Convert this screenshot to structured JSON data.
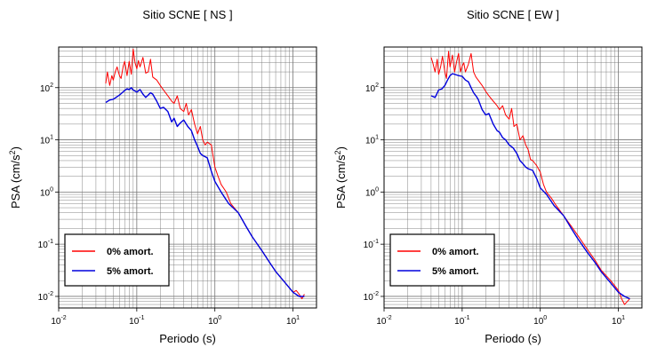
{
  "chart_data": [
    {
      "type": "line",
      "title": "Sitio SCNE [ NS ]",
      "xlabel": "Periodo (s)",
      "ylabel_main": "PSA (cm/s",
      "ylabel_sup": "2",
      "ylabel_tail": ")",
      "xscale": "log",
      "yscale": "log",
      "xlim": [
        0.01,
        20
      ],
      "ylim": [
        0.006,
        600
      ],
      "grid": true,
      "legend_position": "bottom-left",
      "xtick_labels": [
        {
          "base": "10",
          "exp": "-2"
        },
        {
          "base": "10",
          "exp": "-1"
        },
        {
          "base": "10",
          "exp": "0"
        },
        {
          "base": "10",
          "exp": "1"
        }
      ],
      "ytick_labels": [
        {
          "base": "10",
          "exp": "-2"
        },
        {
          "base": "10",
          "exp": "-1"
        },
        {
          "base": "10",
          "exp": "0"
        },
        {
          "base": "10",
          "exp": "1"
        },
        {
          "base": "10",
          "exp": "2"
        }
      ],
      "series": [
        {
          "name": "0% amort.",
          "color": "#ff0000",
          "x": [
            0.04,
            0.042,
            0.045,
            0.048,
            0.05,
            0.053,
            0.056,
            0.06,
            0.063,
            0.067,
            0.07,
            0.075,
            0.08,
            0.085,
            0.09,
            0.095,
            0.1,
            0.105,
            0.11,
            0.12,
            0.13,
            0.14,
            0.15,
            0.16,
            0.18,
            0.2,
            0.22,
            0.25,
            0.28,
            0.3,
            0.33,
            0.36,
            0.4,
            0.43,
            0.46,
            0.5,
            0.55,
            0.6,
            0.65,
            0.7,
            0.75,
            0.8,
            0.9,
            1.0,
            1.1,
            1.2,
            1.4,
            1.6,
            2.0,
            2.5,
            3.0,
            4.0,
            5.0,
            6.0,
            8.0,
            10.0,
            11.0,
            12.0,
            13.0,
            14.0
          ],
          "y": [
            120,
            200,
            110,
            170,
            140,
            200,
            250,
            170,
            150,
            260,
            320,
            170,
            320,
            180,
            550,
            300,
            230,
            330,
            250,
            380,
            190,
            200,
            350,
            160,
            140,
            110,
            90,
            70,
            55,
            50,
            70,
            40,
            35,
            50,
            30,
            38,
            20,
            13,
            18,
            10,
            8,
            9,
            8,
            3.0,
            2.0,
            1.4,
            1.0,
            0.6,
            0.4,
            0.22,
            0.14,
            0.075,
            0.045,
            0.03,
            0.018,
            0.012,
            0.013,
            0.011,
            0.009,
            0.011
          ]
        },
        {
          "name": "5% amort.",
          "color": "#0000dd",
          "x": [
            0.04,
            0.045,
            0.05,
            0.055,
            0.06,
            0.065,
            0.07,
            0.075,
            0.08,
            0.085,
            0.09,
            0.1,
            0.11,
            0.12,
            0.13,
            0.14,
            0.15,
            0.16,
            0.18,
            0.2,
            0.22,
            0.25,
            0.28,
            0.3,
            0.33,
            0.36,
            0.4,
            0.45,
            0.5,
            0.55,
            0.6,
            0.65,
            0.7,
            0.8,
            0.9,
            1.0,
            1.2,
            1.5,
            2.0,
            2.5,
            3.0,
            4.0,
            5.0,
            6.0,
            8.0,
            10.0,
            12.0,
            14.0
          ],
          "y": [
            52,
            58,
            60,
            66,
            72,
            80,
            88,
            95,
            92,
            100,
            90,
            82,
            92,
            75,
            65,
            72,
            80,
            75,
            55,
            40,
            42,
            35,
            22,
            26,
            18,
            21,
            24,
            18,
            15,
            10,
            7.5,
            5.5,
            5,
            4.5,
            2.5,
            1.6,
            1.0,
            0.6,
            0.4,
            0.22,
            0.14,
            0.075,
            0.045,
            0.03,
            0.018,
            0.012,
            0.01,
            0.01
          ]
        }
      ]
    },
    {
      "type": "line",
      "title": "Sitio SCNE [ EW ]",
      "xlabel": "Periodo (s)",
      "ylabel_main": "PSA (cm/s",
      "ylabel_sup": "2",
      "ylabel_tail": ")",
      "xscale": "log",
      "yscale": "log",
      "xlim": [
        0.01,
        20
      ],
      "ylim": [
        0.006,
        600
      ],
      "grid": true,
      "legend_position": "bottom-left",
      "xtick_labels": [
        {
          "base": "10",
          "exp": "-2"
        },
        {
          "base": "10",
          "exp": "-1"
        },
        {
          "base": "10",
          "exp": "0"
        },
        {
          "base": "10",
          "exp": "1"
        }
      ],
      "ytick_labels": [
        {
          "base": "10",
          "exp": "-2"
        },
        {
          "base": "10",
          "exp": "-1"
        },
        {
          "base": "10",
          "exp": "0"
        },
        {
          "base": "10",
          "exp": "1"
        },
        {
          "base": "10",
          "exp": "2"
        }
      ],
      "series": [
        {
          "name": "0% amort.",
          "color": "#ff0000",
          "x": [
            0.04,
            0.042,
            0.045,
            0.048,
            0.05,
            0.053,
            0.056,
            0.06,
            0.063,
            0.067,
            0.07,
            0.075,
            0.08,
            0.085,
            0.09,
            0.095,
            0.1,
            0.105,
            0.11,
            0.12,
            0.13,
            0.14,
            0.15,
            0.16,
            0.18,
            0.2,
            0.22,
            0.25,
            0.28,
            0.3,
            0.33,
            0.36,
            0.4,
            0.43,
            0.46,
            0.5,
            0.55,
            0.6,
            0.65,
            0.7,
            0.75,
            0.8,
            0.9,
            1.0,
            1.1,
            1.2,
            1.4,
            1.6,
            2.0,
            2.5,
            3.0,
            4.0,
            5.0,
            6.0,
            8.0,
            10.0,
            11.0,
            12.0,
            13.0,
            14.0
          ],
          "y": [
            380,
            300,
            200,
            350,
            180,
            250,
            400,
            200,
            150,
            500,
            250,
            420,
            200,
            320,
            450,
            200,
            260,
            300,
            200,
            280,
            450,
            200,
            160,
            140,
            110,
            85,
            70,
            55,
            45,
            38,
            45,
            30,
            25,
            40,
            18,
            20,
            10,
            12,
            8,
            6.5,
            4.2,
            4,
            3.2,
            2.4,
            1.4,
            1.0,
            0.75,
            0.55,
            0.35,
            0.22,
            0.15,
            0.08,
            0.05,
            0.032,
            0.02,
            0.013,
            0.009,
            0.007,
            0.008,
            0.009
          ]
        },
        {
          "name": "5% amort.",
          "color": "#0000dd",
          "x": [
            0.04,
            0.045,
            0.05,
            0.055,
            0.06,
            0.065,
            0.07,
            0.075,
            0.08,
            0.085,
            0.09,
            0.1,
            0.11,
            0.12,
            0.13,
            0.14,
            0.15,
            0.16,
            0.18,
            0.2,
            0.22,
            0.25,
            0.28,
            0.3,
            0.33,
            0.36,
            0.4,
            0.45,
            0.5,
            0.55,
            0.6,
            0.65,
            0.7,
            0.8,
            0.9,
            1.0,
            1.2,
            1.5,
            2.0,
            2.5,
            3.0,
            4.0,
            5.0,
            6.0,
            8.0,
            10.0,
            12.0,
            14.0
          ],
          "y": [
            70,
            65,
            90,
            95,
            110,
            140,
            170,
            185,
            180,
            175,
            170,
            165,
            140,
            130,
            100,
            80,
            70,
            60,
            38,
            30,
            32,
            20,
            15,
            14,
            11,
            10,
            8,
            7,
            5.5,
            4,
            3.5,
            3.0,
            2.8,
            2.6,
            1.8,
            1.2,
            0.9,
            0.55,
            0.35,
            0.2,
            0.13,
            0.07,
            0.045,
            0.03,
            0.018,
            0.012,
            0.01,
            0.009
          ]
        }
      ]
    }
  ]
}
